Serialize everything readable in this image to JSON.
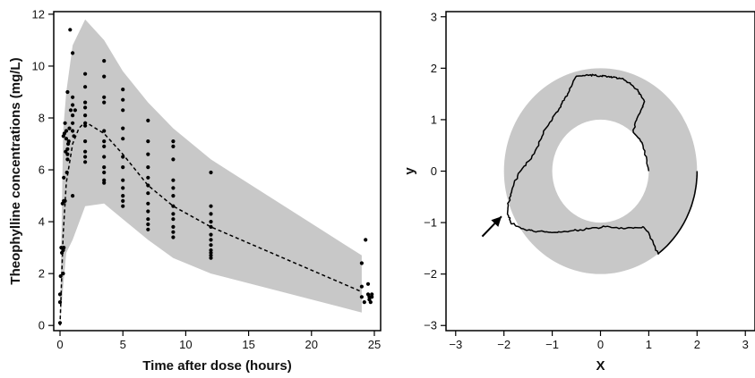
{
  "chart_data": [
    {
      "type": "scatter",
      "title": "",
      "xlabel": "Time after dose (hours)",
      "ylabel": "Theophylline concentrations (mg/L)",
      "xlim": [
        -0.5,
        25.5
      ],
      "ylim": [
        -0.2,
        12.1
      ],
      "xticks": [
        "0",
        "5",
        "10",
        "15",
        "20",
        "25"
      ],
      "yticks": [
        "0",
        "2",
        "4",
        "6",
        "8",
        "10",
        "12"
      ],
      "grid": false,
      "colors": {
        "band": "#c8c8c8",
        "points": "#000000",
        "median": "#000000"
      },
      "band": {
        "x": [
          0,
          0.25,
          0.5,
          1,
          2,
          3.5,
          5,
          7,
          9,
          12,
          24
        ],
        "lower": [
          0,
          1.5,
          2.8,
          3.3,
          4.6,
          4.7,
          4.1,
          3.3,
          2.6,
          2.0,
          0.5
        ],
        "upper": [
          0,
          7.5,
          9.0,
          10.8,
          11.8,
          11.0,
          9.8,
          8.6,
          7.6,
          6.4,
          2.7
        ]
      },
      "median_line": {
        "style": "dashed",
        "x": [
          0,
          0.25,
          0.5,
          1,
          1.5,
          2,
          3.5,
          5,
          7,
          9,
          12,
          24
        ],
        "y": [
          0,
          3.5,
          5.5,
          7.0,
          7.6,
          7.85,
          7.4,
          6.6,
          5.4,
          4.6,
          3.8,
          1.3
        ]
      },
      "points": {
        "x": [
          0,
          0,
          0,
          0.05,
          0.1,
          0.15,
          0.2,
          0.25,
          0.25,
          0.27,
          0.3,
          0.3,
          0.3,
          0.35,
          0.4,
          0.4,
          0.45,
          0.5,
          0.5,
          0.55,
          0.6,
          0.6,
          0.6,
          0.6,
          0.65,
          0.7,
          0.75,
          0.8,
          0.85,
          1,
          1,
          1,
          1,
          1,
          1,
          1,
          1.1,
          1.2,
          2,
          2,
          2,
          2,
          2,
          2,
          2,
          2,
          2,
          2,
          2,
          3.5,
          3.5,
          3.5,
          3.5,
          3.5,
          3.5,
          3.5,
          3.5,
          3.5,
          3.5,
          3.5,
          3.5,
          5,
          5,
          5,
          5,
          5,
          5,
          5,
          5,
          5,
          5,
          5,
          5,
          7,
          7,
          7,
          7,
          7,
          7,
          7,
          7,
          7,
          7,
          7,
          7,
          9,
          9,
          9,
          9,
          9,
          9,
          9,
          9,
          9,
          9,
          9,
          9,
          12,
          12,
          12,
          12,
          12,
          12,
          12,
          12,
          12,
          12,
          12,
          12,
          24,
          24,
          24,
          24.2,
          24.3,
          24.5,
          24.5,
          24.6,
          24.6,
          24.7,
          24.8,
          24.8
        ],
        "y": [
          0.1,
          0.9,
          1.2,
          1.9,
          3.0,
          2.8,
          4.7,
          2.0,
          2.9,
          7.3,
          3.0,
          4.8,
          5.7,
          7.4,
          7.8,
          4.8,
          6.7,
          7.2,
          7.5,
          5.9,
          9.0,
          6.8,
          6.4,
          6.6,
          7.0,
          7.1,
          7.6,
          11.4,
          8.3,
          10.5,
          8.8,
          8.5,
          8.1,
          7.8,
          7.5,
          5.0,
          7.3,
          8.3,
          9.7,
          9.2,
          8.6,
          8.4,
          8.1,
          7.8,
          7.7,
          7.1,
          6.7,
          6.5,
          6.3,
          10.2,
          9.6,
          8.8,
          8.6,
          7.5,
          7.1,
          6.9,
          6.5,
          6.1,
          5.9,
          5.6,
          5.5,
          9.1,
          8.7,
          8.3,
          7.6,
          7.2,
          6.5,
          6.1,
          5.6,
          5.3,
          5.0,
          4.8,
          4.6,
          7.9,
          7.1,
          6.6,
          6.1,
          5.7,
          5.4,
          5.1,
          4.7,
          4.4,
          4.1,
          3.9,
          3.7,
          7.1,
          6.9,
          6.4,
          5.6,
          5.3,
          5.0,
          4.6,
          4.3,
          4.1,
          3.8,
          3.6,
          3.4,
          5.9,
          4.6,
          4.3,
          4.0,
          3.8,
          3.5,
          3.3,
          3.1,
          2.9,
          2.8,
          2.7,
          2.6,
          2.4,
          1.5,
          1.1,
          0.9,
          3.3,
          1.6,
          1.2,
          1.1,
          1.0,
          0.9,
          1.1,
          1.2
        ]
      }
    },
    {
      "type": "line",
      "title": "",
      "xlabel": "X",
      "ylabel": "y",
      "xlim": [
        -3.2,
        3.2
      ],
      "ylim": [
        -3.1,
        3.1
      ],
      "xticks": [
        "−3",
        "−2",
        "−1",
        "0",
        "1",
        "2",
        "3"
      ],
      "yticks": [
        "3",
        "2",
        "1",
        "0",
        "−1",
        "−2",
        "−3"
      ],
      "grid": false,
      "colors": {
        "annulus": "#c8c8c8",
        "path": "#000000",
        "background": "#ffffff"
      },
      "annulus": {
        "center": [
          0,
          0
        ],
        "inner_radius": 1,
        "outer_radius": 2
      },
      "path": {
        "x": [
          1.0,
          0.95,
          0.88,
          0.78,
          0.68,
          0.72,
          0.81,
          0.88,
          0.91,
          0.85,
          0.78,
          0.68,
          0.58,
          0.5,
          0.42,
          0.33,
          0.22,
          0.12,
          0.0,
          -0.12,
          -0.25,
          -0.38,
          -0.52,
          -0.6,
          -0.68,
          -0.75,
          -0.82,
          -0.95,
          -1.05,
          -1.18,
          -1.25,
          -1.35,
          -1.48,
          -1.62,
          -1.72,
          -1.8,
          -1.86,
          -1.9,
          -1.92,
          -1.9,
          -1.86,
          -1.75,
          -1.6,
          -1.45,
          -1.3,
          -1.12,
          -0.95,
          -0.78,
          -0.6,
          -0.42,
          -0.25,
          -0.08,
          0.1,
          0.28,
          0.48,
          0.68,
          0.88,
          1.0,
          1.1,
          1.2
        ],
        "y": [
          0.0,
          0.28,
          0.5,
          0.65,
          0.75,
          0.95,
          1.12,
          1.25,
          1.35,
          1.45,
          1.55,
          1.65,
          1.72,
          1.77,
          1.8,
          1.82,
          1.84,
          1.84,
          1.85,
          1.86,
          1.86,
          1.85,
          1.82,
          1.65,
          1.5,
          1.38,
          1.25,
          1.1,
          0.95,
          0.78,
          0.6,
          0.4,
          0.2,
          0.05,
          -0.1,
          -0.28,
          -0.45,
          -0.6,
          -0.75,
          -0.9,
          -1.0,
          -1.07,
          -1.12,
          -1.15,
          -1.17,
          -1.18,
          -1.19,
          -1.18,
          -1.16,
          -1.14,
          -1.12,
          -1.1,
          -1.08,
          -1.1,
          -1.12,
          -1.11,
          -1.08,
          -1.2,
          -1.42,
          -1.62
        ]
      },
      "outer_arc": {
        "start_angle_deg": 0,
        "end_angle_deg": -53.5,
        "radius": 2
      },
      "arrow": {
        "from": [
          -2.45,
          -1.27
        ],
        "to": [
          -2.05,
          -0.88
        ]
      }
    }
  ]
}
